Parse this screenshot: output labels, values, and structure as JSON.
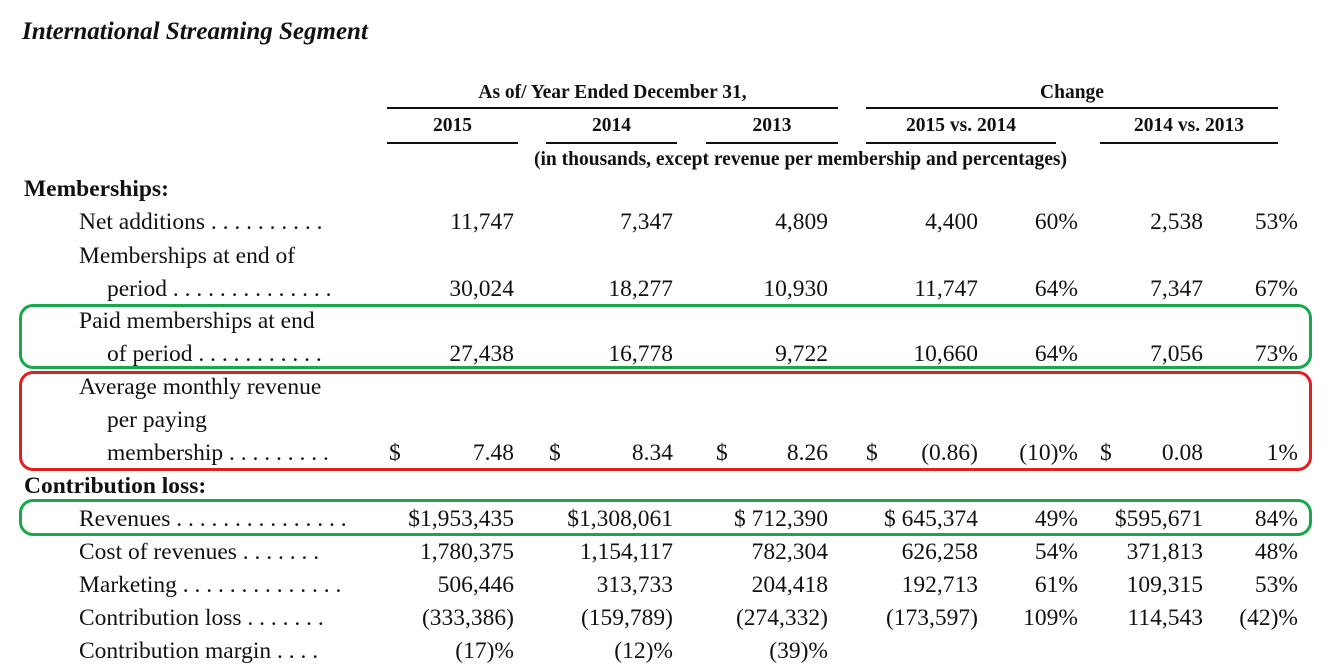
{
  "title": "International Streaming Segment",
  "header": {
    "group1": "As of/ Year Ended December 31,",
    "group2": "Change",
    "cols": [
      "2015",
      "2014",
      "2013",
      "2015 vs. 2014",
      "2014 vs. 2013"
    ],
    "note": "(in thousands, except revenue per membership and percentages)"
  },
  "sections": {
    "memberships": "Memberships:",
    "contribution": "Contribution loss:"
  },
  "rows": [
    {
      "label": [
        "Net additions . . . . . . . . . ."
      ],
      "values": [
        "11,747",
        "7,347",
        "4,809",
        "4,400",
        "60%",
        "2,538",
        "53%"
      ]
    },
    {
      "label": [
        "Memberships at end of",
        "period . . . . . . . . . . . . . ."
      ],
      "values": [
        "30,024",
        "18,277",
        "10,930",
        "11,747",
        "64%",
        "7,347",
        "67%"
      ]
    },
    {
      "label": [
        "Paid memberships at end",
        "of period . . . . . . . . . . ."
      ],
      "values": [
        "27,438",
        "16,778",
        "9,722",
        "10,660",
        "64%",
        "7,056",
        "73%"
      ]
    },
    {
      "label": [
        "Average monthly revenue",
        "per paying",
        "membership . . . . . . . . ."
      ],
      "dollar": [
        "$",
        "$",
        "$",
        "$",
        "$"
      ],
      "values": [
        "7.48",
        "8.34",
        "8.26",
        "(0.86)",
        "(10)%",
        "0.08",
        "1%"
      ]
    },
    {
      "label": [
        "Revenues . . . . . . . . . . . . . . ."
      ],
      "values": [
        "$1,953,435",
        "$1,308,061",
        "$ 712,390",
        "$ 645,374",
        "49%",
        "$595,671",
        "84%"
      ]
    },
    {
      "label": [
        "Cost of revenues . . . . . . ."
      ],
      "values": [
        "1,780,375",
        "1,154,117",
        "782,304",
        "626,258",
        "54%",
        "371,813",
        "48%"
      ]
    },
    {
      "label": [
        "Marketing . . . . . . . . . . . . . ."
      ],
      "values": [
        "506,446",
        "313,733",
        "204,418",
        "192,713",
        "61%",
        "109,315",
        "53%"
      ]
    },
    {
      "label": [
        "Contribution loss . . . . . . ."
      ],
      "values": [
        "(333,386)",
        "(159,789)",
        "(274,332)",
        "(173,597)",
        "109%",
        "114,543",
        "(42)%"
      ]
    },
    {
      "label": [
        "Contribution margin . . . ."
      ],
      "values": [
        "(17)%",
        "(12)%",
        "(39)%",
        "",
        "",
        "",
        ""
      ]
    }
  ],
  "highlight_colors": {
    "green": "#1aa64a",
    "red": "#e02020"
  }
}
